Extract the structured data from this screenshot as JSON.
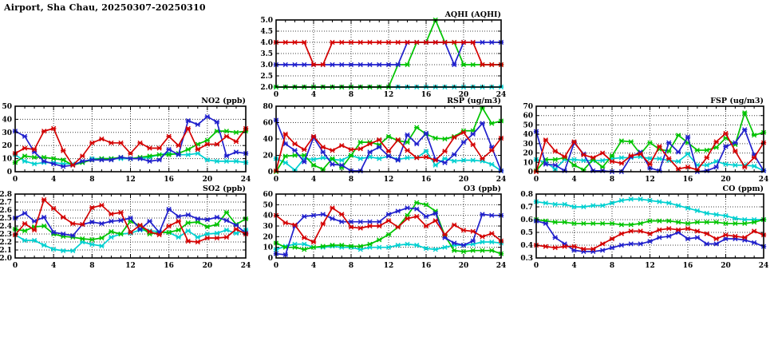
{
  "page_title": "Airport, Sha Chau, 20250307-20250310",
  "series_colors": {
    "red": "#d40000",
    "blue": "#2020cc",
    "green": "#00c400",
    "cyan": "#00d0d0"
  },
  "axis_color": "#000000",
  "grid_color": "#404040",
  "hours": [
    0,
    1,
    2,
    3,
    4,
    5,
    6,
    7,
    8,
    9,
    10,
    11,
    12,
    13,
    14,
    15,
    16,
    17,
    18,
    19,
    20,
    21,
    22,
    23,
    24
  ],
  "x_tick_labels": [
    "0",
    "4",
    "8",
    "12",
    "16",
    "20",
    "24"
  ],
  "chart_data": [
    {
      "id": "aqhi",
      "type": "line",
      "title": "AQHI (AQHI)",
      "ylim": [
        2.0,
        5.0
      ],
      "ytick_labels": [
        "2.0",
        "2.5",
        "3.0",
        "3.5",
        "4.0",
        "4.5",
        "5.0"
      ],
      "xlabel": "",
      "ylabel": "",
      "grid": true,
      "legend": "none",
      "series": [
        {
          "name": "cyan",
          "values": [
            2,
            2,
            2,
            2,
            2,
            2,
            2,
            2,
            2,
            2,
            2,
            2,
            2,
            2,
            2,
            2,
            2,
            2,
            2,
            2,
            2,
            2,
            2,
            2,
            2
          ]
        },
        {
          "name": "green",
          "values": [
            2,
            2,
            2,
            2,
            2,
            2,
            2,
            2,
            2,
            2,
            2,
            2,
            2,
            3,
            3,
            4,
            4,
            5,
            4,
            4,
            3,
            3,
            3,
            3,
            3
          ]
        },
        {
          "name": "blue",
          "values": [
            3,
            3,
            3,
            3,
            3,
            3,
            3,
            3,
            3,
            3,
            3,
            3,
            3,
            3,
            4,
            4,
            4,
            4,
            4,
            3,
            4,
            4,
            4,
            4,
            4
          ]
        },
        {
          "name": "red",
          "values": [
            4,
            4,
            4,
            4,
            3,
            3,
            4,
            4,
            4,
            4,
            4,
            4,
            4,
            4,
            4,
            4,
            4,
            4,
            4,
            4,
            4,
            4,
            3,
            3,
            3
          ]
        }
      ]
    },
    {
      "id": "no2",
      "type": "line",
      "title": "NO2 (ppb)",
      "ylim": [
        0,
        50
      ],
      "ytick_labels": [
        "0",
        "10",
        "20",
        "30",
        "40",
        "50"
      ],
      "xlabel": "",
      "ylabel": "",
      "grid": true,
      "legend": "none",
      "series": [
        {
          "name": "cyan",
          "values": [
            13,
            8,
            6,
            7,
            7,
            6,
            6,
            7,
            10,
            10,
            10,
            10,
            10,
            10,
            11,
            13,
            14,
            13,
            13,
            14,
            9,
            8,
            8,
            8,
            7
          ]
        },
        {
          "name": "green",
          "values": [
            7,
            12,
            11,
            11,
            10,
            9,
            5,
            7,
            9,
            10,
            10,
            11,
            10,
            11,
            12,
            13,
            13,
            14,
            17,
            21,
            24,
            31,
            31,
            30,
            31
          ]
        },
        {
          "name": "blue",
          "values": [
            31,
            27,
            15,
            8,
            6,
            4,
            5,
            8,
            9,
            9,
            9,
            11,
            10,
            10,
            8,
            9,
            17,
            13,
            39,
            36,
            42,
            38,
            12,
            15,
            14
          ]
        },
        {
          "name": "red",
          "values": [
            14,
            18,
            17,
            31,
            33,
            16,
            5,
            12,
            22,
            25,
            22,
            22,
            14,
            22,
            18,
            18,
            27,
            20,
            33,
            17,
            21,
            21,
            27,
            23,
            33
          ]
        }
      ]
    },
    {
      "id": "rsp",
      "type": "line",
      "title": "RSP (ug/m3)",
      "ylim": [
        0,
        80
      ],
      "ytick_labels": [
        "0",
        "20",
        "40",
        "60",
        "80"
      ],
      "xlabel": "",
      "ylabel": "",
      "grid": true,
      "legend": "none",
      "series": [
        {
          "name": "cyan",
          "values": [
            16,
            11,
            2,
            16,
            15,
            17,
            15,
            14,
            20,
            16,
            18,
            16,
            19,
            15,
            17,
            17,
            25,
            8,
            16,
            13,
            14,
            14,
            13,
            9,
            1
          ]
        },
        {
          "name": "green",
          "values": [
            0,
            19,
            20,
            20,
            8,
            3,
            16,
            5,
            20,
            36,
            36,
            33,
            43,
            38,
            36,
            54,
            46,
            41,
            40,
            43,
            50,
            50,
            78,
            59,
            62
          ]
        },
        {
          "name": "blue",
          "values": [
            63,
            34,
            26,
            12,
            42,
            24,
            9,
            8,
            1,
            1,
            24,
            30,
            19,
            14,
            45,
            34,
            47,
            15,
            11,
            21,
            36,
            46,
            59,
            30,
            1
          ]
        },
        {
          "name": "red",
          "values": [
            1,
            46,
            34,
            27,
            43,
            30,
            26,
            32,
            27,
            28,
            34,
            39,
            25,
            39,
            26,
            17,
            18,
            14,
            25,
            42,
            48,
            33,
            16,
            26,
            41
          ]
        }
      ]
    },
    {
      "id": "fsp",
      "type": "line",
      "title": "FSP (ug/m3)",
      "ylim": [
        0,
        70
      ],
      "ytick_labels": [
        "0",
        "10",
        "20",
        "30",
        "40",
        "50",
        "60",
        "70"
      ],
      "xlabel": "",
      "ylabel": "",
      "grid": true,
      "legend": "none",
      "series": [
        {
          "name": "cyan",
          "values": [
            13,
            10,
            3,
            13,
            13,
            12,
            12,
            12,
            14,
            15,
            15,
            16,
            14,
            14,
            12,
            11,
            19,
            7,
            7,
            11,
            8,
            7,
            7,
            6,
            1
          ]
        },
        {
          "name": "green",
          "values": [
            1,
            13,
            13,
            15,
            7,
            2,
            13,
            5,
            17,
            33,
            32,
            19,
            31,
            24,
            22,
            39,
            31,
            23,
            23,
            26,
            36,
            29,
            63,
            39,
            42
          ]
        },
        {
          "name": "blue",
          "values": [
            43,
            8,
            7,
            1,
            31,
            19,
            1,
            1,
            0,
            0,
            16,
            21,
            4,
            1,
            31,
            21,
            37,
            0,
            1,
            5,
            27,
            31,
            45,
            18,
            1
          ]
        },
        {
          "name": "red",
          "values": [
            0,
            34,
            22,
            16,
            32,
            18,
            15,
            20,
            11,
            9,
            17,
            19,
            8,
            27,
            14,
            3,
            5,
            2,
            15,
            32,
            41,
            22,
            5,
            15,
            31
          ]
        }
      ]
    },
    {
      "id": "so2",
      "type": "line",
      "title": "SO2 (ppb)",
      "ylim": [
        2.0,
        2.8
      ],
      "ytick_labels": [
        "2.0",
        "2.1",
        "2.2",
        "2.3",
        "2.4",
        "2.5",
        "2.6",
        "2.7",
        "2.8"
      ],
      "xlabel": "",
      "ylabel": "",
      "grid": true,
      "legend": "none",
      "series": [
        {
          "name": "cyan",
          "values": [
            2.29,
            2.22,
            2.22,
            2.16,
            2.11,
            2.09,
            2.09,
            2.2,
            2.17,
            2.15,
            2.26,
            2.3,
            2.31,
            2.35,
            2.34,
            2.33,
            2.32,
            2.26,
            2.34,
            2.26,
            2.3,
            2.31,
            2.35,
            2.31,
            2.35
          ]
        },
        {
          "name": "green",
          "values": [
            2.36,
            2.34,
            2.39,
            2.4,
            2.3,
            2.27,
            2.26,
            2.24,
            2.23,
            2.25,
            2.33,
            2.3,
            2.46,
            2.4,
            2.3,
            2.32,
            2.32,
            2.35,
            2.44,
            2.45,
            2.39,
            2.42,
            2.57,
            2.42,
            2.49
          ]
        },
        {
          "name": "blue",
          "values": [
            2.5,
            2.56,
            2.46,
            2.51,
            2.32,
            2.3,
            2.28,
            2.42,
            2.45,
            2.43,
            2.46,
            2.47,
            2.5,
            2.36,
            2.46,
            2.32,
            2.61,
            2.52,
            2.54,
            2.49,
            2.48,
            2.51,
            2.47,
            2.41,
            2.31
          ]
        },
        {
          "name": "red",
          "values": [
            2.29,
            2.43,
            2.35,
            2.73,
            2.62,
            2.51,
            2.43,
            2.42,
            2.63,
            2.66,
            2.55,
            2.57,
            2.32,
            2.41,
            2.33,
            2.29,
            2.4,
            2.46,
            2.21,
            2.2,
            2.25,
            2.25,
            2.26,
            2.36,
            2.3
          ]
        }
      ]
    },
    {
      "id": "o3",
      "type": "line",
      "title": "O3 (ppb)",
      "ylim": [
        0,
        60
      ],
      "ytick_labels": [
        "0",
        "10",
        "20",
        "30",
        "40",
        "50",
        "60"
      ],
      "xlabel": "",
      "ylabel": "",
      "grid": true,
      "legend": "none",
      "series": [
        {
          "name": "cyan",
          "values": [
            8,
            11,
            13,
            13,
            10,
            10,
            11,
            10,
            10,
            8,
            10,
            10,
            10,
            12,
            13,
            12,
            9,
            8,
            10,
            12,
            12,
            13,
            15,
            15,
            14
          ]
        },
        {
          "name": "green",
          "values": [
            14,
            10,
            10,
            8,
            10,
            11,
            12,
            12,
            11,
            11,
            13,
            17,
            22,
            29,
            40,
            52,
            50,
            44,
            21,
            7,
            6,
            7,
            7,
            7,
            4
          ]
        },
        {
          "name": "blue",
          "values": [
            4,
            3,
            30,
            39,
            40,
            41,
            37,
            34,
            34,
            34,
            34,
            34,
            41,
            44,
            47,
            46,
            39,
            42,
            19,
            14,
            12,
            16,
            41,
            40,
            40
          ]
        },
        {
          "name": "red",
          "values": [
            40,
            33,
            31,
            19,
            15,
            32,
            47,
            41,
            29,
            28,
            30,
            30,
            35,
            29,
            37,
            39,
            30,
            35,
            22,
            31,
            26,
            25,
            20,
            23,
            16
          ]
        }
      ]
    },
    {
      "id": "co",
      "type": "line",
      "title": "CO (ppm)",
      "ylim": [
        0.3,
        0.8
      ],
      "ytick_labels": [
        "0.3",
        "0.4",
        "0.5",
        "0.6",
        "0.7",
        "0.8"
      ],
      "xlabel": "",
      "ylabel": "",
      "grid": true,
      "legend": "none",
      "series": [
        {
          "name": "cyan",
          "values": [
            0.74,
            0.73,
            0.72,
            0.72,
            0.7,
            0.7,
            0.71,
            0.71,
            0.73,
            0.75,
            0.76,
            0.76,
            0.75,
            0.74,
            0.73,
            0.71,
            0.69,
            0.67,
            0.65,
            0.64,
            0.63,
            0.61,
            0.6,
            0.6,
            0.6
          ]
        },
        {
          "name": "green",
          "values": [
            0.6,
            0.59,
            0.58,
            0.58,
            0.57,
            0.57,
            0.57,
            0.57,
            0.57,
            0.56,
            0.56,
            0.57,
            0.59,
            0.59,
            0.59,
            0.58,
            0.57,
            0.58,
            0.58,
            0.58,
            0.57,
            0.57,
            0.57,
            0.58,
            0.6
          ]
        },
        {
          "name": "blue",
          "values": [
            0.59,
            0.57,
            0.46,
            0.41,
            0.36,
            0.35,
            0.35,
            0.36,
            0.38,
            0.4,
            0.41,
            0.41,
            0.43,
            0.46,
            0.47,
            0.5,
            0.45,
            0.46,
            0.41,
            0.41,
            0.45,
            0.45,
            0.44,
            0.42,
            0.39
          ]
        },
        {
          "name": "red",
          "values": [
            0.4,
            0.39,
            0.38,
            0.39,
            0.39,
            0.37,
            0.37,
            0.41,
            0.45,
            0.49,
            0.51,
            0.51,
            0.49,
            0.52,
            0.53,
            0.52,
            0.53,
            0.51,
            0.49,
            0.45,
            0.48,
            0.47,
            0.46,
            0.51,
            0.48
          ]
        }
      ]
    }
  ]
}
